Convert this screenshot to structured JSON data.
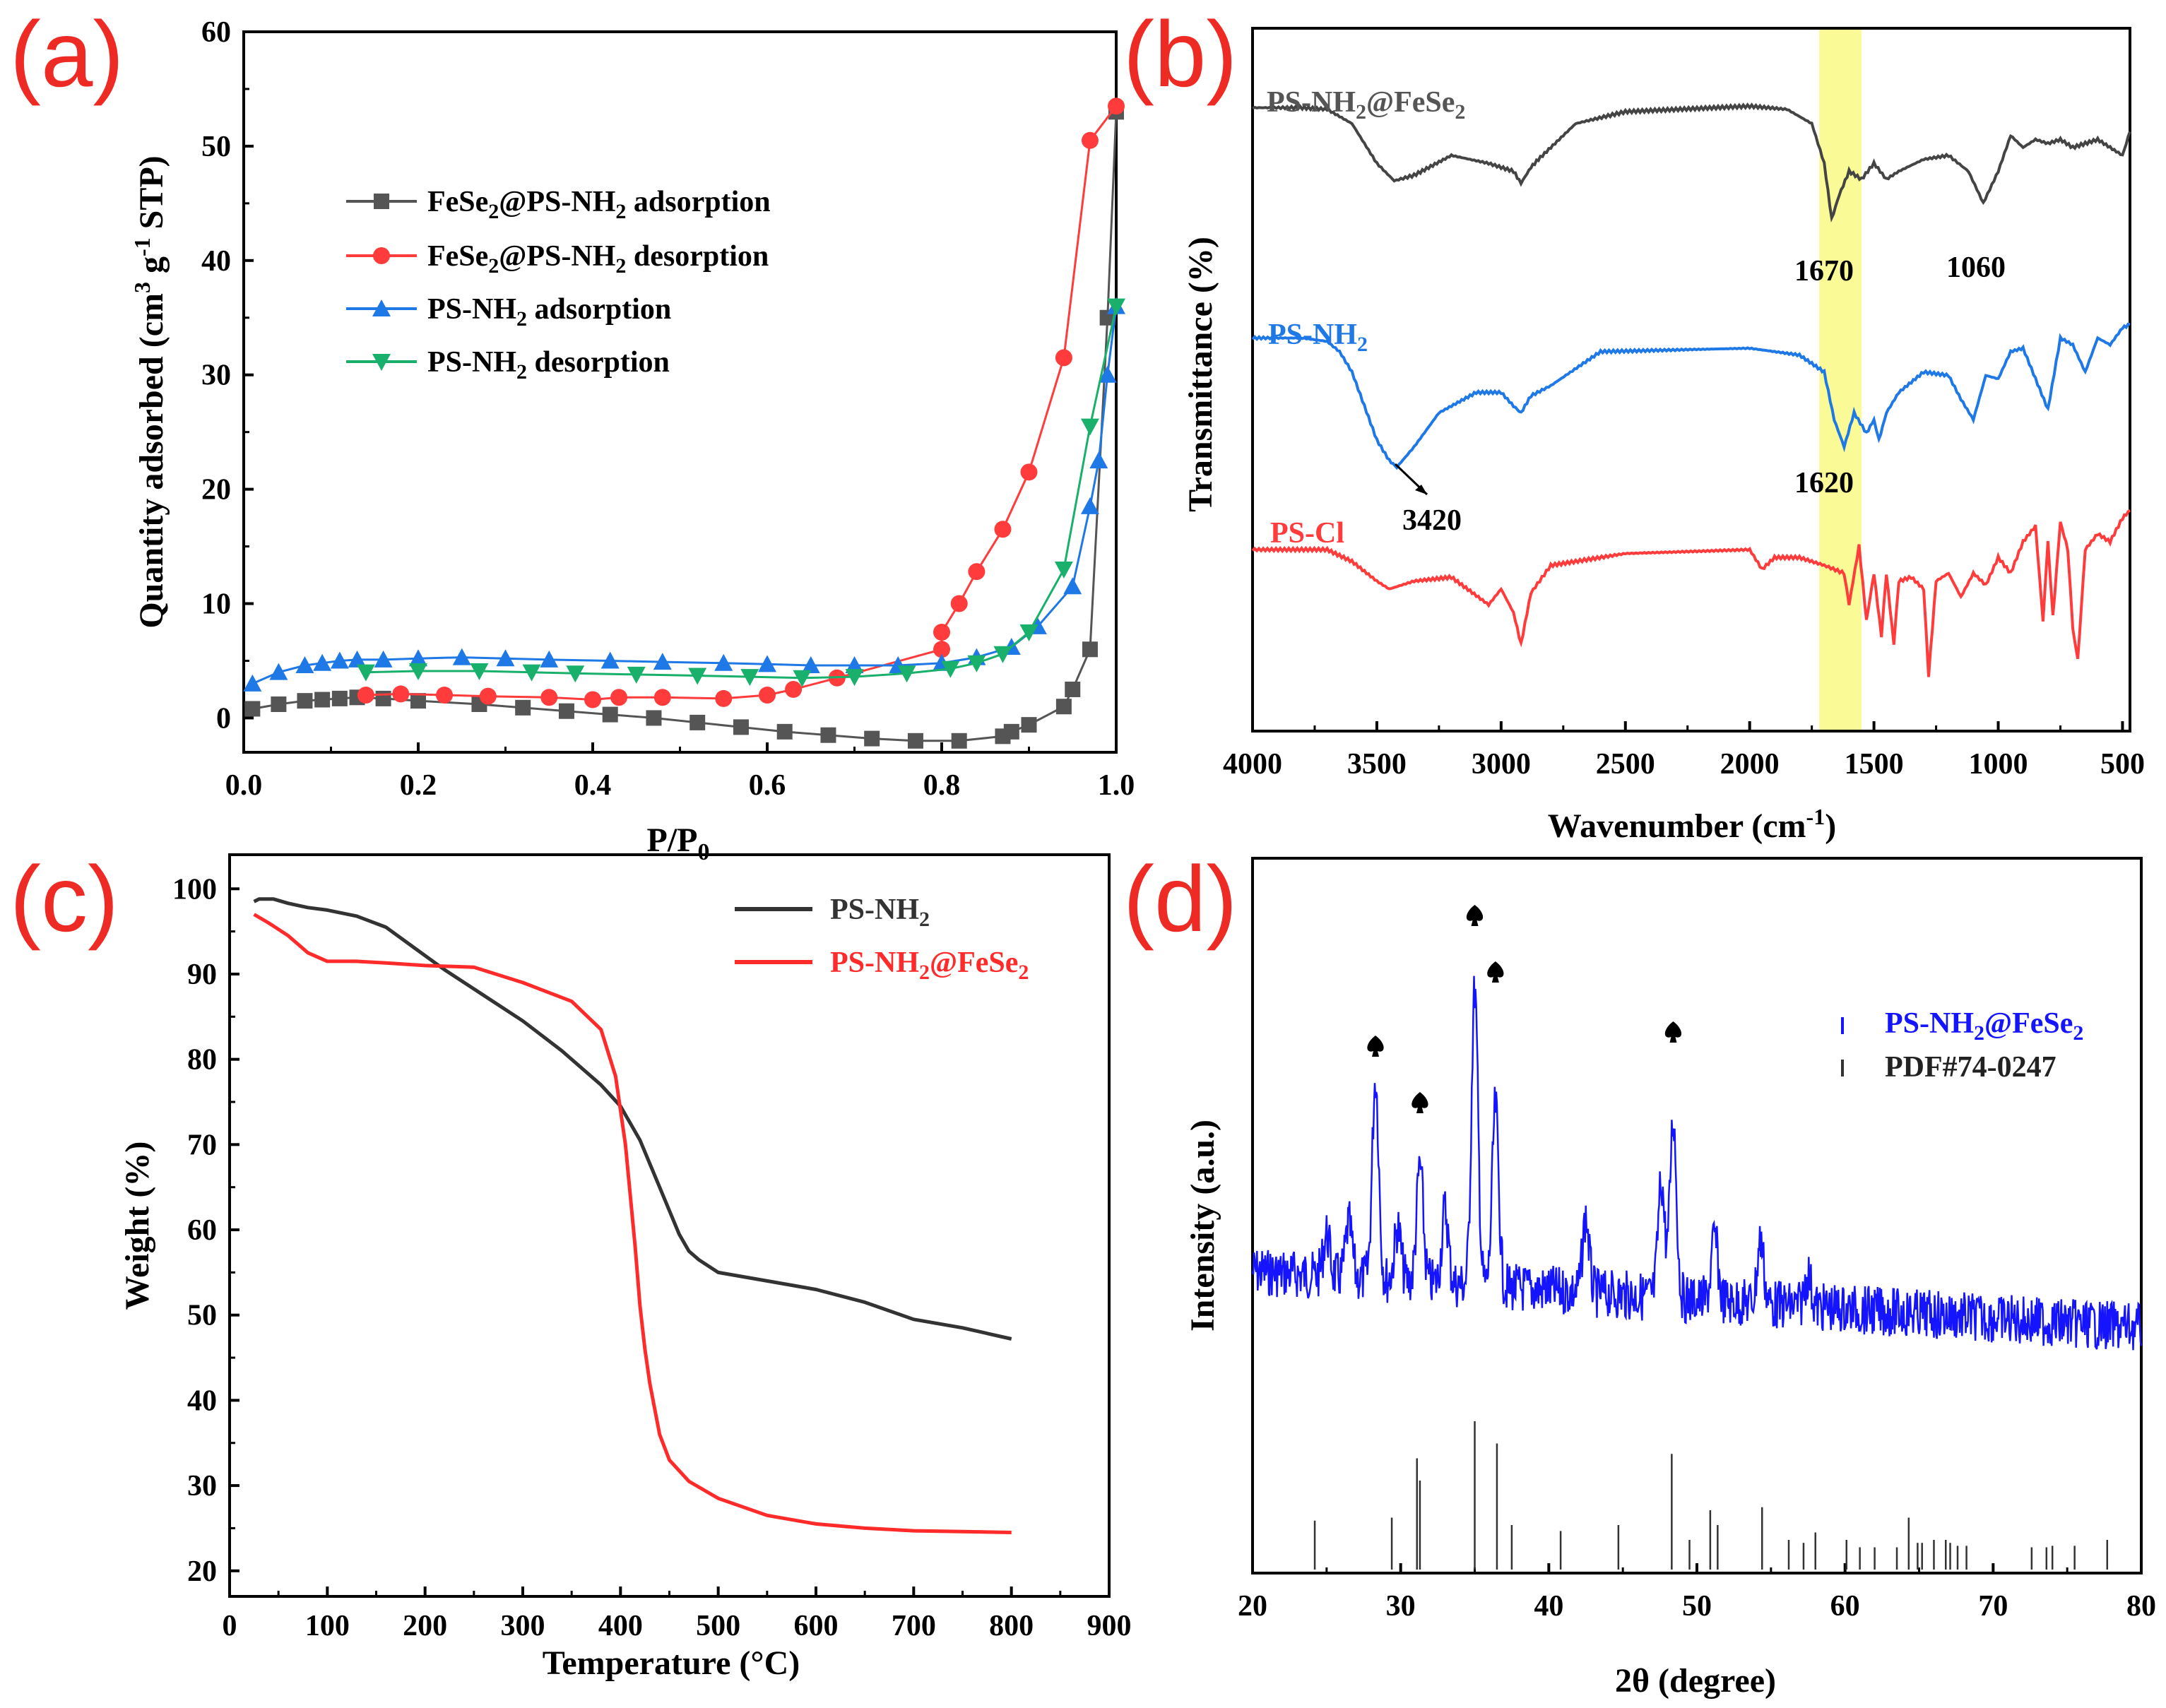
{
  "chart_data": [
    {
      "panel": "(a)",
      "type": "line",
      "xlabel": "P/P0",
      "ylabel": "Quantity adsorbed (cm3 g-1 STP)",
      "xlim": [
        0.0,
        1.0
      ],
      "ylim": [
        -3,
        60
      ],
      "xticks": [
        "0.0",
        "0.2",
        "0.4",
        "0.6",
        "0.8",
        "1.0"
      ],
      "yticks": [
        "0",
        "10",
        "20",
        "30",
        "40",
        "50",
        "60"
      ],
      "legend_position": "upper-left",
      "legend": [
        {
          "text": "FeSe2@PS-NH2 adsorption",
          "color": "#555555",
          "marker": "square"
        },
        {
          "text": "FeSe2@PS-NH2 desorption",
          "color": "#ff3b3b",
          "marker": "circle"
        },
        {
          "text": "PS-NH2 adsorption",
          "color": "#1e78e6",
          "marker": "triangle-up"
        },
        {
          "text": "PS-NH2 desorption",
          "color": "#18b06a",
          "marker": "triangle-down"
        }
      ],
      "series": [
        {
          "color": "#555555",
          "marker": "square",
          "x": [
            0.01,
            0.04,
            0.07,
            0.09,
            0.11,
            0.13,
            0.16,
            0.2,
            0.27,
            0.32,
            0.37,
            0.42,
            0.47,
            0.52,
            0.57,
            0.62,
            0.67,
            0.72,
            0.77,
            0.82,
            0.87,
            0.88,
            0.9,
            0.94,
            0.95,
            0.97,
            0.99,
            1.0
          ],
          "y": [
            0.8,
            1.2,
            1.5,
            1.6,
            1.7,
            1.8,
            1.7,
            1.5,
            1.2,
            0.9,
            0.6,
            0.3,
            0.0,
            -0.4,
            -0.8,
            -1.2,
            -1.5,
            -1.8,
            -2.0,
            -2.0,
            -1.6,
            -1.2,
            -0.6,
            1.0,
            2.5,
            6.0,
            35.0,
            53.0
          ]
        },
        {
          "color": "#ff3b3b",
          "marker": "circle",
          "x": [
            0.14,
            0.18,
            0.23,
            0.28,
            0.35,
            0.4,
            0.43,
            0.48,
            0.55,
            0.6,
            0.63,
            0.68,
            0.8,
            0.8,
            0.82,
            0.84,
            0.87,
            0.9,
            0.94,
            0.97,
            1.0
          ],
          "y": [
            2.0,
            2.1,
            2.0,
            1.9,
            1.8,
            1.6,
            1.8,
            1.8,
            1.7,
            2.0,
            2.5,
            3.5,
            6.0,
            7.5,
            10.0,
            12.8,
            16.5,
            21.5,
            31.5,
            50.5,
            53.5
          ]
        },
        {
          "color": "#1e78e6",
          "marker": "triangle-up",
          "x": [
            0.01,
            0.04,
            0.07,
            0.09,
            0.11,
            0.13,
            0.16,
            0.2,
            0.25,
            0.3,
            0.35,
            0.42,
            0.48,
            0.55,
            0.6,
            0.65,
            0.7,
            0.75,
            0.8,
            0.84,
            0.88,
            0.91,
            0.95,
            0.97,
            0.98,
            0.99,
            1.0
          ],
          "y": [
            3.0,
            4.0,
            4.6,
            4.8,
            5.0,
            5.1,
            5.1,
            5.2,
            5.3,
            5.2,
            5.1,
            5.0,
            4.9,
            4.8,
            4.7,
            4.6,
            4.6,
            4.6,
            4.8,
            5.3,
            6.2,
            8.0,
            11.5,
            18.5,
            22.5,
            30.0,
            36.0
          ]
        },
        {
          "color": "#18b06a",
          "marker": "triangle-down",
          "x": [
            0.14,
            0.2,
            0.27,
            0.33,
            0.38,
            0.45,
            0.52,
            0.58,
            0.64,
            0.7,
            0.76,
            0.81,
            0.84,
            0.87,
            0.9,
            0.94,
            0.97,
            1.0
          ],
          "y": [
            4.0,
            4.1,
            4.1,
            4.0,
            3.9,
            3.8,
            3.7,
            3.6,
            3.5,
            3.6,
            3.9,
            4.3,
            4.8,
            5.6,
            7.5,
            13.0,
            25.5,
            36.0
          ]
        }
      ]
    },
    {
      "panel": "(b)",
      "type": "line",
      "xlabel": "Wavenumber (cm-1)",
      "ylabel": "Transmittance (%)",
      "xlim": [
        4000,
        470
      ],
      "xticks": [
        "4000",
        "3500",
        "3000",
        "2500",
        "2000",
        "1500",
        "1000",
        "500"
      ],
      "highlight_band": [
        1550,
        1720
      ],
      "highlight_color": "#fafa96",
      "series_labels": [
        {
          "text": "PS-NH2@FeSe2",
          "color": "#555555"
        },
        {
          "text": "PS-NH2",
          "color": "#1e78e6"
        },
        {
          "text": "PS-Cl",
          "color": "#ff3b3b"
        }
      ],
      "annotations": [
        "1670",
        "1060",
        "3420",
        "1620"
      ],
      "series": [
        {
          "color": "#444444",
          "x": [
            4000,
            3800,
            3700,
            3600,
            3500,
            3430,
            3350,
            3200,
            3050,
            2950,
            2920,
            2880,
            2850,
            2700,
            2500,
            2000,
            1850,
            1750,
            1700,
            1670,
            1640,
            1600,
            1550,
            1500,
            1450,
            1400,
            1300,
            1200,
            1120,
            1060,
            1000,
            950,
            900,
            850,
            800,
            750,
            700,
            650,
            600,
            550,
            500,
            470
          ],
          "y": [
            98,
            98,
            97.8,
            96,
            91,
            88.8,
            89.5,
            92,
            91,
            90,
            88.5,
            90.5,
            91.5,
            96,
            97.5,
            98.2,
            97.8,
            96,
            91,
            84,
            87,
            90,
            89,
            91,
            89,
            90,
            91.5,
            92,
            90,
            86,
            90,
            94.5,
            93,
            94,
            93.5,
            94,
            93,
            93.5,
            94,
            93,
            92,
            95
          ]
        },
        {
          "color": "#1e78e6",
          "x": [
            4000,
            3800,
            3700,
            3650,
            3600,
            3550,
            3500,
            3450,
            3420,
            3350,
            3250,
            3100,
            3000,
            2950,
            2920,
            2880,
            2800,
            2600,
            2000,
            1900,
            1800,
            1700,
            1660,
            1620,
            1580,
            1530,
            1500,
            1480,
            1450,
            1400,
            1300,
            1200,
            1150,
            1100,
            1050,
            1000,
            950,
            900,
            850,
            800,
            750,
            700,
            650,
            600,
            550,
            500,
            470
          ],
          "y": [
            78,
            78,
            77.5,
            76,
            73,
            68,
            63,
            60,
            59,
            62,
            67,
            70,
            70,
            68,
            67,
            69.5,
            71,
            76,
            76.5,
            76,
            75.5,
            73,
            66,
            62,
            67,
            64,
            66,
            63,
            67,
            70,
            73,
            72.5,
            69,
            66,
            72.5,
            72,
            76,
            76.5,
            72,
            67.5,
            78,
            77,
            73,
            78,
            77,
            79.5,
            80
          ]
        },
        {
          "color": "#ff3b3b",
          "x": [
            4000,
            3700,
            3600,
            3500,
            3450,
            3350,
            3200,
            3050,
            3000,
            2950,
            2920,
            2880,
            2800,
            2700,
            2500,
            2000,
            1950,
            1900,
            1800,
            1700,
            1620,
            1600,
            1560,
            1530,
            1500,
            1470,
            1450,
            1420,
            1400,
            1350,
            1300,
            1280,
            1250,
            1200,
            1150,
            1100,
            1050,
            1000,
            950,
            900,
            850,
            820,
            800,
            780,
            750,
            720,
            700,
            680,
            650,
            600,
            550,
            500,
            470
          ],
          "y": [
            59,
            59,
            57.5,
            55,
            54,
            55,
            55.5,
            52,
            54,
            51,
            47,
            53.5,
            57,
            57.5,
            58.5,
            59,
            56.5,
            58,
            58,
            57,
            56,
            52,
            59.5,
            50,
            56,
            48,
            56,
            47,
            55,
            55.5,
            54,
            43,
            55,
            56,
            53,
            56,
            54.5,
            58,
            56,
            60,
            62,
            50,
            60,
            50.5,
            62.5,
            59,
            49,
            45,
            59,
            61,
            60,
            63,
            64
          ]
        }
      ]
    },
    {
      "panel": "(c)",
      "type": "line",
      "xlabel": "Temperature (°C)",
      "ylabel": "Weight (%)",
      "xlim": [
        0,
        900
      ],
      "ylim": [
        17,
        104
      ],
      "xticks": [
        "0",
        "100",
        "200",
        "300",
        "400",
        "500",
        "600",
        "700",
        "800",
        "900"
      ],
      "yticks": [
        "20",
        "30",
        "40",
        "50",
        "60",
        "70",
        "80",
        "90",
        "100"
      ],
      "legend_position": "upper-right",
      "legend": [
        {
          "text": "PS-NH2",
          "color": "#333333"
        },
        {
          "text": "PS-NH2@FeSe2",
          "color": "#ff2a2a"
        }
      ],
      "series": [
        {
          "color": "#333333",
          "x": [
            25,
            30,
            45,
            60,
            80,
            100,
            130,
            160,
            190,
            220,
            260,
            300,
            340,
            380,
            400,
            420,
            440,
            460,
            470,
            480,
            500,
            550,
            600,
            650,
            700,
            750,
            800
          ],
          "y": [
            98.5,
            98.8,
            98.8,
            98.3,
            97.8,
            97.5,
            96.8,
            95.5,
            93.0,
            90.5,
            87.5,
            84.5,
            81.0,
            77.0,
            74.5,
            70.5,
            65.0,
            59.5,
            57.5,
            56.5,
            55.0,
            54.0,
            53.0,
            51.5,
            49.5,
            48.5,
            47.2
          ]
        },
        {
          "color": "#ff2a2a",
          "x": [
            25,
            40,
            60,
            80,
            100,
            130,
            160,
            200,
            250,
            300,
            350,
            380,
            395,
            405,
            415,
            420,
            425,
            430,
            440,
            450,
            470,
            500,
            550,
            600,
            650,
            700,
            750,
            800
          ],
          "y": [
            97.0,
            96.0,
            94.5,
            92.5,
            91.5,
            91.5,
            91.3,
            91.0,
            90.8,
            89.0,
            86.8,
            83.5,
            78.0,
            70.0,
            58.0,
            51.0,
            46.0,
            42.0,
            36.0,
            33.0,
            30.5,
            28.5,
            26.5,
            25.5,
            25.0,
            24.7,
            24.6,
            24.5
          ]
        }
      ]
    },
    {
      "panel": "(d)",
      "type": "line",
      "xlabel": "2θ (degree)",
      "ylabel": "Intensity (a.u.)",
      "xlim": [
        20,
        80
      ],
      "xticks": [
        "20",
        "30",
        "40",
        "50",
        "60",
        "70",
        "80"
      ],
      "legend_position": "upper-right",
      "legend": [
        {
          "text": "PS-NH2@FeSe2",
          "color": "#1414ff"
        },
        {
          "text": "PDF#74-0247",
          "color": "#333333"
        }
      ],
      "peak_markers": [
        28.3,
        31.3,
        35.0,
        36.4,
        48.4
      ],
      "pattern_peaks": [
        {
          "x": 28.3,
          "h": 0.95
        },
        {
          "x": 31.3,
          "h": 0.55
        },
        {
          "x": 35.0,
          "h": 1.4
        },
        {
          "x": 36.4,
          "h": 0.85
        },
        {
          "x": 25.0,
          "h": 0.2
        },
        {
          "x": 26.5,
          "h": 0.25
        },
        {
          "x": 29.8,
          "h": 0.25
        },
        {
          "x": 33.0,
          "h": 0.35
        },
        {
          "x": 42.5,
          "h": 0.35
        },
        {
          "x": 47.6,
          "h": 0.55
        },
        {
          "x": 48.4,
          "h": 0.85
        },
        {
          "x": 51.2,
          "h": 0.3
        },
        {
          "x": 54.3,
          "h": 0.3
        },
        {
          "x": 57.5,
          "h": 0.15
        }
      ],
      "reference_lines": [
        {
          "x": 24.2,
          "h": 0.33
        },
        {
          "x": 29.4,
          "h": 0.35
        },
        {
          "x": 31.1,
          "h": 0.75
        },
        {
          "x": 31.3,
          "h": 0.6
        },
        {
          "x": 35.0,
          "h": 1.0
        },
        {
          "x": 36.5,
          "h": 0.85
        },
        {
          "x": 37.5,
          "h": 0.3
        },
        {
          "x": 40.8,
          "h": 0.26
        },
        {
          "x": 44.7,
          "h": 0.3
        },
        {
          "x": 48.3,
          "h": 0.78
        },
        {
          "x": 49.5,
          "h": 0.2
        },
        {
          "x": 50.9,
          "h": 0.4
        },
        {
          "x": 51.4,
          "h": 0.3
        },
        {
          "x": 54.4,
          "h": 0.42
        },
        {
          "x": 56.2,
          "h": 0.2
        },
        {
          "x": 57.2,
          "h": 0.18
        },
        {
          "x": 58.0,
          "h": 0.25
        },
        {
          "x": 60.1,
          "h": 0.2
        },
        {
          "x": 61.0,
          "h": 0.15
        },
        {
          "x": 62.0,
          "h": 0.15
        },
        {
          "x": 63.5,
          "h": 0.15
        },
        {
          "x": 64.3,
          "h": 0.35
        },
        {
          "x": 64.9,
          "h": 0.18
        },
        {
          "x": 65.2,
          "h": 0.18
        },
        {
          "x": 66.0,
          "h": 0.2
        },
        {
          "x": 66.8,
          "h": 0.2
        },
        {
          "x": 67.1,
          "h": 0.18
        },
        {
          "x": 67.6,
          "h": 0.16
        },
        {
          "x": 68.2,
          "h": 0.16
        },
        {
          "x": 72.6,
          "h": 0.15
        },
        {
          "x": 73.6,
          "h": 0.15
        },
        {
          "x": 74.0,
          "h": 0.16
        },
        {
          "x": 75.5,
          "h": 0.16
        },
        {
          "x": 77.7,
          "h": 0.2
        }
      ]
    }
  ],
  "panel_labels": [
    "(a)",
    "(b)",
    "(c)",
    "(d)"
  ]
}
